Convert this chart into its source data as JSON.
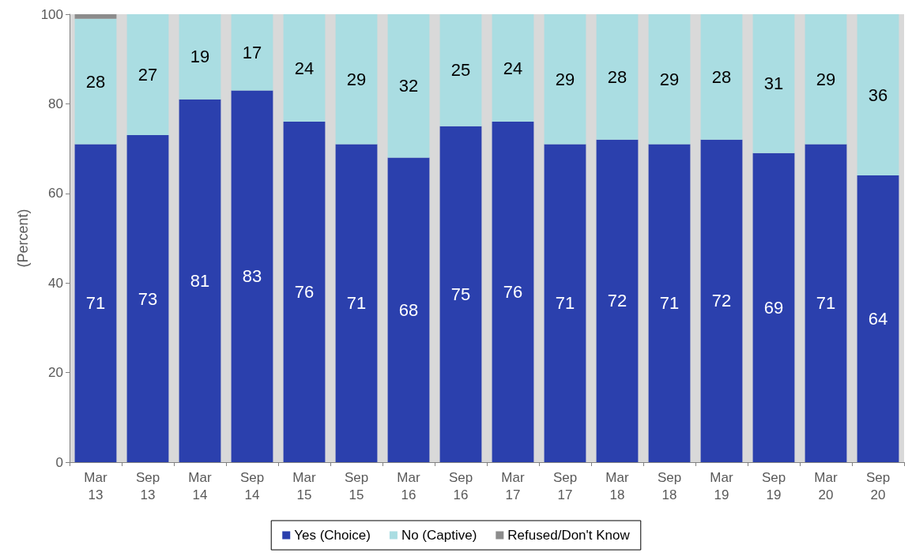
{
  "chart_data": {
    "type": "bar",
    "stacked": true,
    "ylabel": "(Percent)",
    "categories": [
      "Mar\n13",
      "Sep\n13",
      "Mar\n14",
      "Sep\n14",
      "Mar\n15",
      "Sep\n15",
      "Mar\n16",
      "Sep\n16",
      "Mar\n17",
      "Sep\n17",
      "Mar\n18",
      "Sep\n18",
      "Mar\n19",
      "Sep\n19",
      "Mar\n20",
      "Sep\n20"
    ],
    "series": [
      {
        "name": "Yes (Choice)",
        "color": "#2b40ad",
        "values": [
          71,
          73,
          81,
          83,
          76,
          71,
          68,
          75,
          76,
          71,
          72,
          71,
          72,
          69,
          71,
          64
        ],
        "value_labels": [
          "71",
          "73",
          "81",
          "83",
          "76",
          "71",
          "68",
          "75",
          "76",
          "71",
          "72",
          "71",
          "72",
          "69",
          "71",
          "64"
        ]
      },
      {
        "name": "No (Captive)",
        "color": "#aadde2",
        "values": [
          28,
          27,
          19,
          17,
          24,
          29,
          32,
          25,
          24,
          29,
          28,
          29,
          28,
          31,
          29,
          36
        ],
        "value_labels": [
          "28",
          "27",
          "19",
          "17",
          "24",
          "29",
          "32",
          "25",
          "24",
          "29",
          "28",
          "29",
          "28",
          "31",
          "29",
          "36"
        ]
      },
      {
        "name": "Refused/Don't Know",
        "color": "#8c8c8c",
        "values": [
          1,
          0,
          0,
          0,
          0,
          0,
          0,
          0,
          0,
          0,
          0,
          0,
          0,
          0,
          0,
          0
        ],
        "value_labels": [
          null,
          null,
          null,
          null,
          null,
          null,
          null,
          null,
          null,
          null,
          null,
          null,
          null,
          null,
          null,
          null
        ]
      }
    ],
    "ylim": [
      0,
      100
    ],
    "yticks": [
      0,
      20,
      40,
      60,
      80,
      100
    ],
    "grid": false,
    "legend": "bottom"
  }
}
